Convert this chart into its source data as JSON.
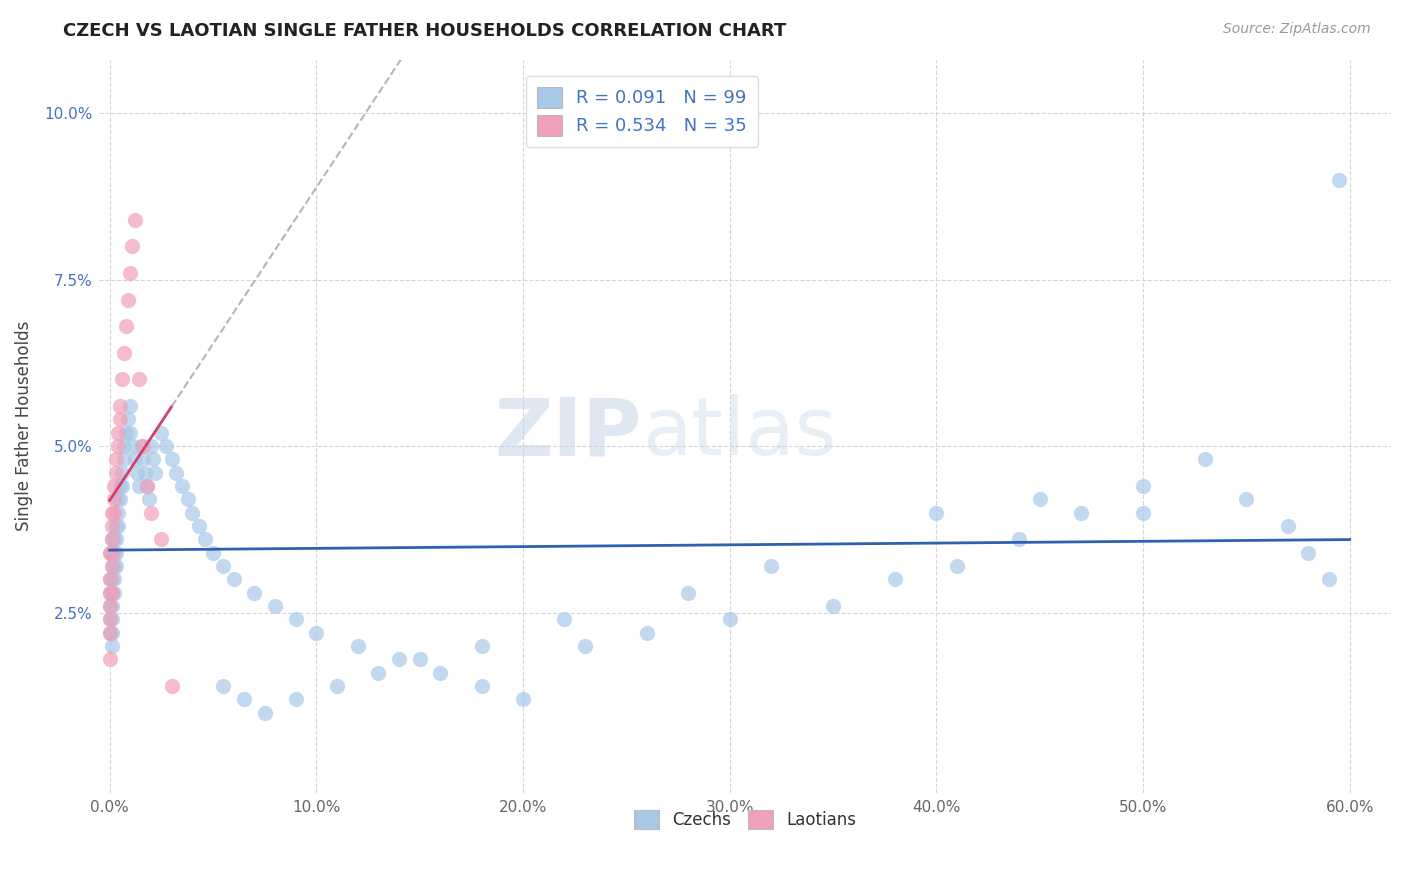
{
  "title": "CZECH VS LAOTIAN SINGLE FATHER HOUSEHOLDS CORRELATION CHART",
  "source_text": "Source: ZipAtlas.com",
  "ylabel": "Single Father Households",
  "czech_color": "#a8c8e8",
  "laotian_color": "#f0a0b8",
  "czech_line_color": "#3060b0",
  "laotian_line_color": "#d04070",
  "laotian_dash_color": "#c0b0b0",
  "watermark_zip": "ZIP",
  "watermark_atlas": "atlas",
  "background_color": "#ffffff",
  "grid_color": "#cccccc",
  "title_color": "#222222",
  "legend_r_czech": "R = 0.091",
  "legend_n_czech": "N = 99",
  "legend_r_laotian": "R = 0.534",
  "legend_n_laotian": "N = 35",
  "xlim": [
    -0.005,
    0.62
  ],
  "ylim": [
    -0.002,
    0.108
  ],
  "xticks": [
    0.0,
    0.1,
    0.2,
    0.3,
    0.4,
    0.5,
    0.6
  ],
  "yticks": [
    0.025,
    0.05,
    0.075,
    0.1
  ],
  "czech_x": [
    0.0,
    0.0,
    0.0,
    0.0,
    0.0,
    0.0,
    0.001,
    0.001,
    0.001,
    0.001,
    0.001,
    0.001,
    0.001,
    0.001,
    0.001,
    0.002,
    0.002,
    0.002,
    0.002,
    0.002,
    0.003,
    0.003,
    0.003,
    0.003,
    0.004,
    0.004,
    0.004,
    0.005,
    0.005,
    0.006,
    0.006,
    0.007,
    0.007,
    0.008,
    0.009,
    0.01,
    0.01,
    0.011,
    0.012,
    0.013,
    0.014,
    0.015,
    0.016,
    0.017,
    0.018,
    0.019,
    0.02,
    0.021,
    0.022,
    0.025,
    0.027,
    0.03,
    0.032,
    0.035,
    0.038,
    0.04,
    0.043,
    0.046,
    0.05,
    0.055,
    0.06,
    0.07,
    0.08,
    0.09,
    0.1,
    0.12,
    0.14,
    0.16,
    0.18,
    0.2,
    0.23,
    0.26,
    0.3,
    0.35,
    0.38,
    0.41,
    0.44,
    0.47,
    0.5,
    0.53,
    0.55,
    0.57,
    0.58,
    0.59,
    0.595,
    0.4,
    0.45,
    0.5,
    0.32,
    0.28,
    0.22,
    0.18,
    0.15,
    0.13,
    0.11,
    0.09,
    0.075,
    0.065,
    0.055
  ],
  "czech_y": [
    0.034,
    0.03,
    0.028,
    0.026,
    0.024,
    0.022,
    0.036,
    0.034,
    0.032,
    0.03,
    0.028,
    0.026,
    0.024,
    0.022,
    0.02,
    0.036,
    0.034,
    0.032,
    0.03,
    0.028,
    0.038,
    0.036,
    0.034,
    0.032,
    0.042,
    0.04,
    0.038,
    0.044,
    0.042,
    0.046,
    0.044,
    0.05,
    0.048,
    0.052,
    0.054,
    0.056,
    0.052,
    0.05,
    0.048,
    0.046,
    0.044,
    0.05,
    0.048,
    0.046,
    0.044,
    0.042,
    0.05,
    0.048,
    0.046,
    0.052,
    0.05,
    0.048,
    0.046,
    0.044,
    0.042,
    0.04,
    0.038,
    0.036,
    0.034,
    0.032,
    0.03,
    0.028,
    0.026,
    0.024,
    0.022,
    0.02,
    0.018,
    0.016,
    0.014,
    0.012,
    0.02,
    0.022,
    0.024,
    0.026,
    0.03,
    0.032,
    0.036,
    0.04,
    0.044,
    0.048,
    0.042,
    0.038,
    0.034,
    0.03,
    0.09,
    0.04,
    0.042,
    0.04,
    0.032,
    0.028,
    0.024,
    0.02,
    0.018,
    0.016,
    0.014,
    0.012,
    0.01,
    0.012,
    0.014
  ],
  "laotian_x": [
    0.0,
    0.0,
    0.0,
    0.0,
    0.0,
    0.0,
    0.0,
    0.001,
    0.001,
    0.001,
    0.001,
    0.001,
    0.001,
    0.002,
    0.002,
    0.002,
    0.003,
    0.003,
    0.004,
    0.004,
    0.005,
    0.005,
    0.006,
    0.007,
    0.008,
    0.009,
    0.01,
    0.011,
    0.012,
    0.014,
    0.016,
    0.018,
    0.02,
    0.025,
    0.03
  ],
  "laotian_y": [
    0.034,
    0.03,
    0.028,
    0.026,
    0.024,
    0.022,
    0.018,
    0.04,
    0.038,
    0.036,
    0.034,
    0.032,
    0.028,
    0.044,
    0.042,
    0.04,
    0.048,
    0.046,
    0.052,
    0.05,
    0.056,
    0.054,
    0.06,
    0.064,
    0.068,
    0.072,
    0.076,
    0.08,
    0.084,
    0.06,
    0.05,
    0.044,
    0.04,
    0.036,
    0.014
  ]
}
